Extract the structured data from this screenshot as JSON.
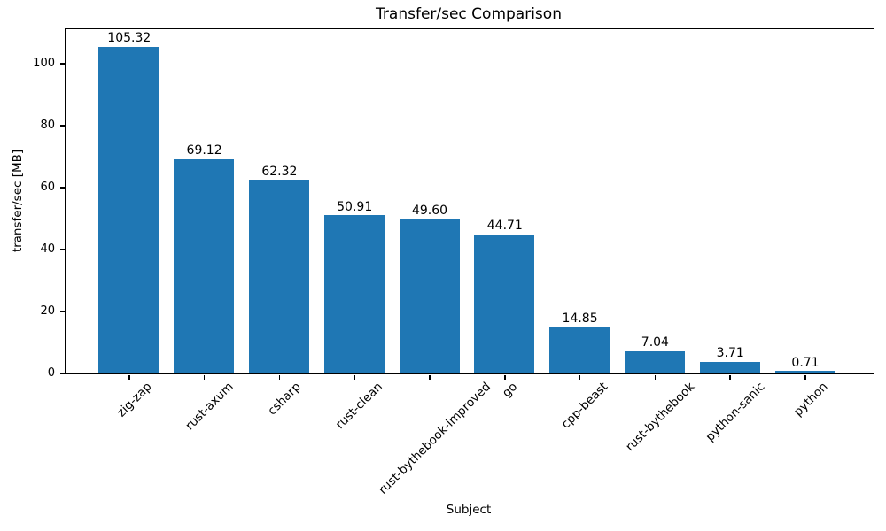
{
  "chart_data": {
    "type": "bar",
    "title": "Transfer/sec Comparison",
    "xlabel": "Subject",
    "ylabel": "transfer/sec [MB]",
    "categories": [
      "zig-zap",
      "rust-axum",
      "csharp",
      "rust-clean",
      "rust-bythebook-improved",
      "go",
      "cpp-beast",
      "rust-bythebook",
      "python-sanic",
      "python"
    ],
    "values": [
      105.32,
      69.12,
      62.32,
      50.91,
      49.6,
      44.71,
      14.85,
      7.04,
      3.71,
      0.71
    ],
    "value_labels": [
      "105.32",
      "69.12",
      "62.32",
      "50.91",
      "49.60",
      "44.71",
      "14.85",
      "7.04",
      "3.71",
      "0.71"
    ],
    "yticks": [
      0,
      20,
      40,
      60,
      80,
      100
    ],
    "ylim": [
      0,
      111.1
    ],
    "bar_color": "#1f77b4",
    "text_color": "#000000",
    "background_color": "#ffffff",
    "grid": false,
    "legend": null,
    "xtick_rotation_deg": 45
  }
}
